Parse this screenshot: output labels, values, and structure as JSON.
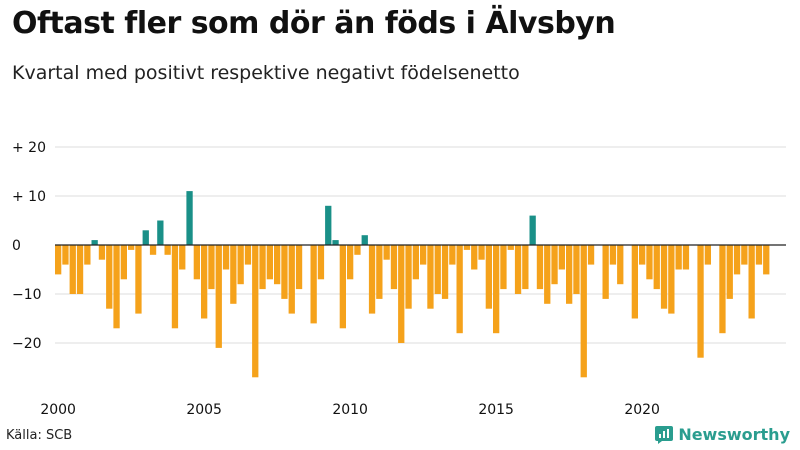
{
  "header": {
    "title": "Oftast fler som dör än föds i Älvsbyn",
    "subtitle": "Kvartal med positivt respektive negativt födelsenetto"
  },
  "footer": {
    "source": "Källa: SCB",
    "brand": "Newsworthy"
  },
  "colors": {
    "positive": "#1a9088",
    "negative": "#f5a21b",
    "grid": "#dddddd",
    "zero_line": "#222222",
    "brand": "#2a9d8f"
  },
  "chart_data": {
    "type": "bar",
    "title": "Oftast fler som dör än föds i Älvsbyn",
    "subtitle": "Kvartal med positivt respektive negativt födelsenetto",
    "xlabel": "",
    "ylabel": "",
    "x_start": "2000 Q1",
    "x_ticks": [
      "2000",
      "2005",
      "2010",
      "2015",
      "2020"
    ],
    "y_ticks": [
      20,
      10,
      0,
      -10,
      -20
    ],
    "y_tick_labels": [
      "+ 20",
      "+ 10",
      "0",
      "−10",
      "−20"
    ],
    "ylim": [
      -28,
      22
    ],
    "grid": true,
    "series": [
      {
        "values": [
          -6,
          -4,
          -10,
          -10,
          -4,
          1,
          -3,
          -13,
          -17,
          -7,
          -1,
          -14,
          3,
          -2,
          5,
          -2,
          -17,
          -5,
          11,
          -7,
          -15,
          -9,
          -21,
          -5,
          -12,
          -8,
          -4,
          -27,
          -9,
          -7,
          -8,
          -11,
          -14,
          -9,
          0,
          -16,
          -7,
          8,
          1,
          -17,
          -7,
          -2,
          2,
          -14,
          -11,
          -3,
          -9,
          -20,
          -13,
          -7,
          -4,
          -13,
          -10,
          -11,
          -4,
          -18,
          -1,
          -5,
          -3,
          -13,
          -18,
          -9,
          -1,
          -10,
          -9,
          6,
          -9,
          -12,
          -8,
          -5,
          -12,
          -10,
          -27,
          -4,
          0,
          -11,
          -4,
          -8,
          0,
          -15,
          -4,
          -7,
          -9,
          -13,
          -14,
          -5,
          -5,
          0,
          -23,
          -4,
          0,
          -18,
          -11,
          -6,
          -4,
          -15,
          -4,
          -6
        ]
      }
    ]
  }
}
